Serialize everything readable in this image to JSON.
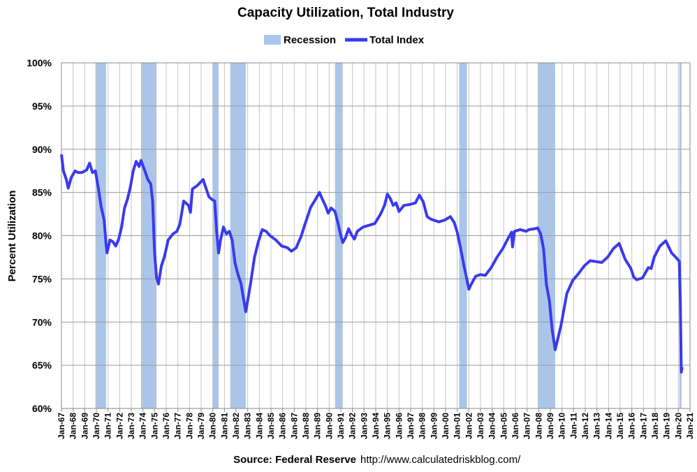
{
  "chart_data": {
    "type": "line",
    "title": "Capacity Utilization, Total Industry",
    "y_label": "Percent Utilization",
    "source": "Source: Federal Reserve",
    "url": "http://www.calculatedriskblog.com/",
    "grid": true,
    "legend": "top",
    "xlim": [
      "1967-01",
      "2021-01"
    ],
    "ylim": [
      60,
      100
    ],
    "yticks": [
      {
        "value": 60,
        "label": "60%"
      },
      {
        "value": 65,
        "label": "65%"
      },
      {
        "value": 70,
        "label": "70%"
      },
      {
        "value": 75,
        "label": "75%"
      },
      {
        "value": 80,
        "label": "80%"
      },
      {
        "value": 85,
        "label": "85%"
      },
      {
        "value": 90,
        "label": "90%"
      },
      {
        "value": 95,
        "label": "95%"
      },
      {
        "value": 100,
        "label": "100%"
      }
    ],
    "xticks": [
      {
        "value": "1967-01",
        "label": "Jan-67"
      },
      {
        "value": "1968-01",
        "label": "Jan-68"
      },
      {
        "value": "1969-01",
        "label": "Jan-69"
      },
      {
        "value": "1970-01",
        "label": "Jan-70"
      },
      {
        "value": "1971-01",
        "label": "Jan-71"
      },
      {
        "value": "1972-01",
        "label": "Jan-72"
      },
      {
        "value": "1973-01",
        "label": "Jan-73"
      },
      {
        "value": "1974-01",
        "label": "Jan-74"
      },
      {
        "value": "1975-01",
        "label": "Jan-75"
      },
      {
        "value": "1976-01",
        "label": "Jan-76"
      },
      {
        "value": "1977-01",
        "label": "Jan-77"
      },
      {
        "value": "1978-01",
        "label": "Jan-78"
      },
      {
        "value": "1979-01",
        "label": "Jan-79"
      },
      {
        "value": "1980-01",
        "label": "Jan-80"
      },
      {
        "value": "1981-01",
        "label": "Jan-81"
      },
      {
        "value": "1982-01",
        "label": "Jan-82"
      },
      {
        "value": "1983-01",
        "label": "Jan-83"
      },
      {
        "value": "1984-01",
        "label": "Jan-84"
      },
      {
        "value": "1985-01",
        "label": "Jan-85"
      },
      {
        "value": "1986-01",
        "label": "Jan-86"
      },
      {
        "value": "1987-01",
        "label": "Jan-87"
      },
      {
        "value": "1988-01",
        "label": "Jan-88"
      },
      {
        "value": "1989-01",
        "label": "Jan-89"
      },
      {
        "value": "1990-01",
        "label": "Jan-90"
      },
      {
        "value": "1991-01",
        "label": "Jan-91"
      },
      {
        "value": "1992-01",
        "label": "Jan-92"
      },
      {
        "value": "1993-01",
        "label": "Jan-93"
      },
      {
        "value": "1994-01",
        "label": "Jan-94"
      },
      {
        "value": "1995-01",
        "label": "Jan-95"
      },
      {
        "value": "1996-01",
        "label": "Jan-96"
      },
      {
        "value": "1997-01",
        "label": "Jan-97"
      },
      {
        "value": "1998-01",
        "label": "Jan-98"
      },
      {
        "value": "1999-01",
        "label": "Jan-99"
      },
      {
        "value": "2000-01",
        "label": "Jan-00"
      },
      {
        "value": "2001-01",
        "label": "Jan-01"
      },
      {
        "value": "2002-01",
        "label": "Jan-02"
      },
      {
        "value": "2003-01",
        "label": "Jan-03"
      },
      {
        "value": "2004-01",
        "label": "Jan-04"
      },
      {
        "value": "2005-01",
        "label": "Jan-05"
      },
      {
        "value": "2006-01",
        "label": "Jan-06"
      },
      {
        "value": "2007-01",
        "label": "Jan-07"
      },
      {
        "value": "2008-01",
        "label": "Jan-08"
      },
      {
        "value": "2009-01",
        "label": "Jan-09"
      },
      {
        "value": "2010-01",
        "label": "Jan-10"
      },
      {
        "value": "2011-01",
        "label": "Jan-11"
      },
      {
        "value": "2012-01",
        "label": "Jan-12"
      },
      {
        "value": "2013-01",
        "label": "Jan-13"
      },
      {
        "value": "2014-01",
        "label": "Jan-14"
      },
      {
        "value": "2015-01",
        "label": "Jan-15"
      },
      {
        "value": "2016-01",
        "label": "Jan-16"
      },
      {
        "value": "2017-01",
        "label": "Jan-17"
      },
      {
        "value": "2018-01",
        "label": "Jan-18"
      },
      {
        "value": "2019-01",
        "label": "Jan-19"
      },
      {
        "value": "2020-01",
        "label": "Jan-20"
      },
      {
        "value": "2021-01",
        "label": "Jan-21"
      }
    ],
    "recessions": {
      "name": "Recession",
      "color": "#a9c5eb",
      "periods": [
        [
          "1969-12",
          "1970-11"
        ],
        [
          "1973-11",
          "1975-03"
        ],
        [
          "1980-01",
          "1980-07"
        ],
        [
          "1981-07",
          "1982-11"
        ],
        [
          "1990-07",
          "1991-03"
        ],
        [
          "2001-03",
          "2001-11"
        ],
        [
          "2007-12",
          "2009-06"
        ],
        [
          "2020-02",
          "2020-04"
        ]
      ]
    },
    "series": [
      {
        "name": "Total Index",
        "color": "#3a3aee",
        "x": [
          "1967-01",
          "1967-03",
          "1967-06",
          "1967-08",
          "1967-11",
          "1968-03",
          "1968-06",
          "1968-10",
          "1969-03",
          "1969-06",
          "1969-09",
          "1969-12",
          "1970-03",
          "1970-06",
          "1970-09",
          "1970-11",
          "1970-12",
          "1971-03",
          "1971-06",
          "1971-09",
          "1971-12",
          "1972-03",
          "1972-06",
          "1972-09",
          "1972-12",
          "1973-03",
          "1973-06",
          "1973-09",
          "1973-11",
          "1974-03",
          "1974-06",
          "1974-09",
          "1974-11",
          "1975-01",
          "1975-03",
          "1975-05",
          "1975-08",
          "1975-11",
          "1976-03",
          "1976-08",
          "1976-12",
          "1977-03",
          "1977-07",
          "1977-12",
          "1978-02",
          "1978-04",
          "1978-09",
          "1979-03",
          "1979-06",
          "1979-09",
          "1979-12",
          "1980-03",
          "1980-05",
          "1980-07",
          "1980-09",
          "1980-12",
          "1981-03",
          "1981-06",
          "1981-09",
          "1981-12",
          "1982-03",
          "1982-06",
          "1982-09",
          "1982-11",
          "1983-01",
          "1983-04",
          "1983-08",
          "1983-12",
          "1984-04",
          "1984-08",
          "1984-12",
          "1985-06",
          "1985-12",
          "1986-03",
          "1986-06",
          "1986-10",
          "1987-03",
          "1987-08",
          "1987-12",
          "1988-06",
          "1988-12",
          "1989-03",
          "1989-06",
          "1989-09",
          "1989-12",
          "1990-03",
          "1990-07",
          "1990-10",
          "1991-01",
          "1991-03",
          "1991-06",
          "1991-09",
          "1991-12",
          "1992-03",
          "1992-06",
          "1992-12",
          "1993-06",
          "1993-12",
          "1994-06",
          "1994-10",
          "1995-01",
          "1995-04",
          "1995-07",
          "1995-10",
          "1996-01",
          "1996-06",
          "1996-12",
          "1997-06",
          "1997-10",
          "1998-02",
          "1998-06",
          "1998-10",
          "1999-06",
          "1999-12",
          "2000-06",
          "2000-10",
          "2001-01",
          "2001-04",
          "2001-08",
          "2001-11",
          "2002-01",
          "2002-04",
          "2002-08",
          "2003-01",
          "2003-06",
          "2003-12",
          "2004-06",
          "2004-12",
          "2005-06",
          "2005-09",
          "2005-10",
          "2005-12",
          "2006-06",
          "2006-12",
          "2007-03",
          "2007-09",
          "2007-12",
          "2008-03",
          "2008-06",
          "2008-09",
          "2008-12",
          "2009-03",
          "2009-06",
          "2009-09",
          "2009-12",
          "2010-06",
          "2010-12",
          "2011-06",
          "2011-12",
          "2012-06",
          "2012-12",
          "2013-06",
          "2013-12",
          "2014-06",
          "2014-12",
          "2015-06",
          "2015-12",
          "2016-03",
          "2016-06",
          "2016-12",
          "2017-06",
          "2017-09",
          "2017-12",
          "2018-06",
          "2018-12",
          "2019-06",
          "2019-12",
          "2020-02",
          "2020-03",
          "2020-04",
          "2020-05"
        ],
        "values": [
          89.4,
          87.5,
          86.5,
          85.5,
          86.7,
          87.5,
          87.3,
          87.3,
          87.6,
          88.4,
          87.3,
          87.5,
          85.5,
          83.3,
          81.8,
          79.0,
          78.0,
          79.5,
          79.3,
          78.8,
          79.6,
          81.0,
          83.2,
          84.2,
          85.6,
          87.5,
          88.6,
          88.0,
          88.7,
          87.5,
          86.5,
          86.0,
          84.0,
          78.0,
          75.2,
          74.4,
          76.5,
          77.5,
          79.5,
          80.2,
          80.5,
          81.3,
          84.0,
          83.5,
          82.7,
          85.4,
          85.8,
          86.5,
          85.5,
          84.5,
          84.2,
          84.0,
          80.5,
          78.0,
          79.5,
          81.0,
          80.2,
          80.5,
          79.5,
          76.8,
          75.5,
          74.5,
          72.5,
          71.2,
          72.5,
          74.5,
          77.5,
          79.3,
          80.7,
          80.5,
          80.0,
          79.5,
          78.8,
          78.7,
          78.6,
          78.2,
          78.6,
          79.9,
          81.3,
          83.3,
          84.4,
          85.0,
          84.2,
          83.5,
          82.6,
          83.2,
          82.8,
          81.5,
          80.0,
          79.2,
          79.8,
          80.8,
          80.1,
          79.6,
          80.5,
          81.0,
          81.2,
          81.4,
          82.5,
          83.5,
          84.8,
          84.3,
          83.5,
          83.8,
          82.8,
          83.5,
          83.6,
          83.8,
          84.7,
          83.9,
          82.2,
          81.9,
          81.6,
          81.8,
          82.2,
          81.5,
          80.4,
          78.8,
          76.5,
          74.9,
          73.8,
          74.5,
          75.3,
          75.5,
          75.4,
          76.3,
          77.5,
          78.5,
          79.8,
          80.4,
          78.7,
          80.5,
          80.7,
          80.5,
          80.7,
          80.8,
          80.9,
          80.2,
          78.5,
          74.3,
          72.5,
          69.0,
          66.8,
          68.2,
          69.6,
          73.3,
          74.8,
          75.6,
          76.5,
          77.1,
          77.0,
          76.9,
          77.5,
          78.5,
          79.1,
          77.3,
          76.2,
          75.2,
          74.9,
          75.1,
          76.3,
          76.2,
          77.5,
          78.8,
          79.4,
          78.0,
          77.3,
          77.0,
          72.5,
          64.2,
          64.8
        ]
      }
    ]
  }
}
